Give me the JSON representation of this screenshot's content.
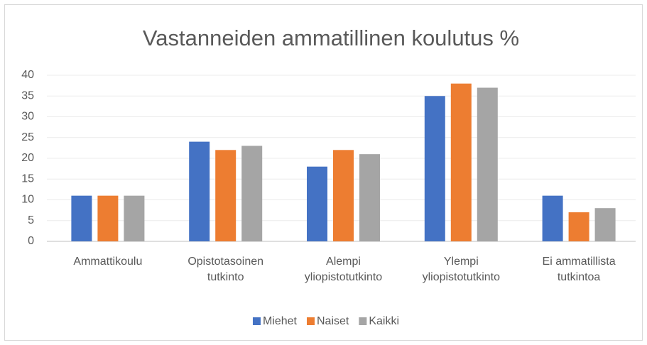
{
  "chart_data": {
    "type": "bar",
    "title": "Vastanneiden ammatillinen koulutus %",
    "categories": [
      "Ammattikoulu",
      "Opistotasoinen tutkinto",
      "Alempi yliopistotutkinto",
      "Ylempi yliopistotutkinto",
      "Ei ammatillista tutkintoa"
    ],
    "series": [
      {
        "name": "Miehet",
        "color": "#4472c4",
        "values": [
          11,
          24,
          18,
          35,
          11
        ]
      },
      {
        "name": "Naiset",
        "color": "#ed7d31",
        "values": [
          11,
          22,
          22,
          38,
          7
        ]
      },
      {
        "name": "Kaikki",
        "color": "#a5a5a5",
        "values": [
          11,
          23,
          21,
          37,
          8
        ]
      }
    ],
    "ylim": [
      0,
      40
    ],
    "yticks": [
      0,
      5,
      10,
      15,
      20,
      25,
      30,
      35,
      40
    ],
    "grid": true,
    "legend": "bottom"
  }
}
